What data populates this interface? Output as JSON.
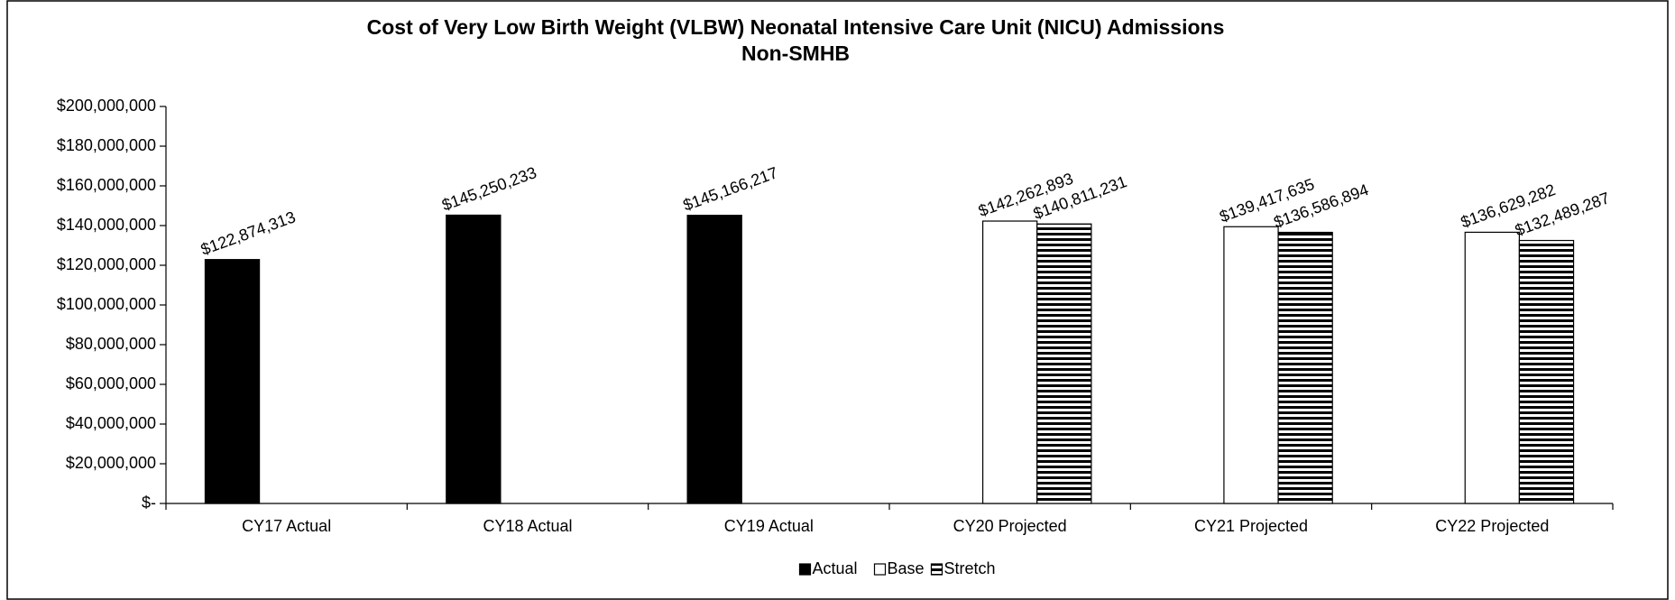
{
  "chart_data": {
    "type": "bar",
    "title": "Cost of Very Low Birth Weight (VLBW) Neonatal Intensive Care Unit (NICU) Admissions",
    "subtitle": "Non-SMHB",
    "categories": [
      "CY17 Actual",
      "CY18 Actual",
      "CY19 Actual",
      "CY20 Projected",
      "CY21 Projected",
      "CY22 Projected"
    ],
    "series": [
      {
        "name": "Actual",
        "color": "#000000",
        "pattern": "solid",
        "values": [
          122874313,
          145250233,
          145166217,
          null,
          null,
          null
        ],
        "value_labels": [
          "$122,874,313",
          "$145,250,233",
          "$145,166,217",
          null,
          null,
          null
        ]
      },
      {
        "name": "Base",
        "color": "#ffffff",
        "pattern": "solid",
        "values": [
          null,
          null,
          null,
          142262893,
          139417635,
          136629282
        ],
        "value_labels": [
          null,
          null,
          null,
          "$142,262,893",
          "$139,417,635",
          "$136,629,282"
        ]
      },
      {
        "name": "Stretch",
        "color": "#000000",
        "pattern": "horizontal-stripes",
        "values": [
          null,
          null,
          null,
          140811231,
          136586894,
          132489287
        ],
        "value_labels": [
          null,
          null,
          null,
          "$140,811,231",
          "$136,586,894",
          "$132,489,287"
        ]
      }
    ],
    "ylim": [
      0,
      200000000
    ],
    "yticks": [
      {
        "value": 0,
        "label": "$-"
      },
      {
        "value": 20000000,
        "label": "$20,000,000"
      },
      {
        "value": 40000000,
        "label": "$40,000,000"
      },
      {
        "value": 60000000,
        "label": "$60,000,000"
      },
      {
        "value": 80000000,
        "label": "$80,000,000"
      },
      {
        "value": 100000000,
        "label": "$100,000,000"
      },
      {
        "value": 120000000,
        "label": "$120,000,000"
      },
      {
        "value": 140000000,
        "label": "$140,000,000"
      },
      {
        "value": 160000000,
        "label": "$160,000,000"
      },
      {
        "value": 180000000,
        "label": "$180,000,000"
      },
      {
        "value": 200000000,
        "label": "$200,000,000"
      }
    ],
    "grid": false,
    "legend": "bottom"
  }
}
